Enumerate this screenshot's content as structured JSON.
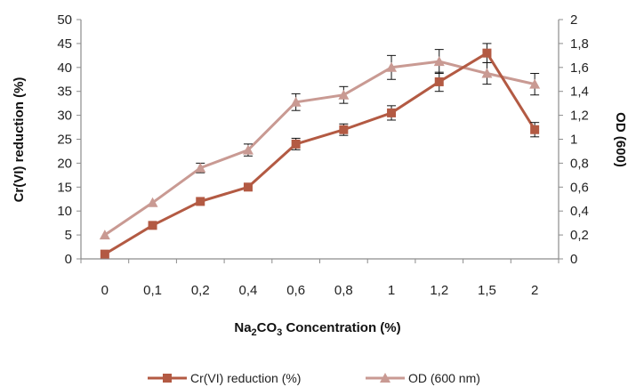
{
  "chart_data": {
    "type": "line",
    "categories": [
      "0",
      "0,1",
      "0,2",
      "0,4",
      "0,6",
      "0,8",
      "1",
      "1,2",
      "1,5",
      "2"
    ],
    "xlabel": {
      "pre": "Na",
      "sub1": "2",
      "mid": "CO",
      "sub2": "3",
      "post": " Concentration (%)"
    },
    "ylabel_left": "Cr(VI) reduction (%)",
    "ylabel_right": "OD (600)",
    "ylim_left": [
      0,
      50
    ],
    "yticks_left": [
      "0",
      "5",
      "10",
      "15",
      "20",
      "25",
      "30",
      "35",
      "40",
      "45",
      "50"
    ],
    "ylim_right": [
      0,
      2
    ],
    "yticks_right": [
      "0",
      "0,2",
      "0,4",
      "0,6",
      "0,8",
      "1",
      "1,2",
      "1,4",
      "1,6",
      "1,8",
      "2"
    ],
    "grid": false,
    "legend_position": "bottom",
    "series": [
      {
        "name": "Cr(VI) reduction (%)",
        "axis": "left",
        "marker": "square",
        "color": "#b35a43",
        "values": [
          1,
          7,
          12,
          15,
          24,
          27,
          30.5,
          37,
          43,
          27
        ],
        "errors": [
          0,
          0,
          0,
          0,
          1.2,
          1.2,
          1.5,
          2,
          2,
          1.5
        ]
      },
      {
        "name": "OD (600 nm)",
        "axis": "right",
        "marker": "triangle",
        "color": "#c99a93",
        "values": [
          0.2,
          0.47,
          0.76,
          0.91,
          1.31,
          1.37,
          1.6,
          1.65,
          1.55,
          1.46
        ],
        "errors": [
          0,
          0,
          0.04,
          0.05,
          0.07,
          0.07,
          0.1,
          0.1,
          0.09,
          0.09
        ]
      }
    ]
  }
}
